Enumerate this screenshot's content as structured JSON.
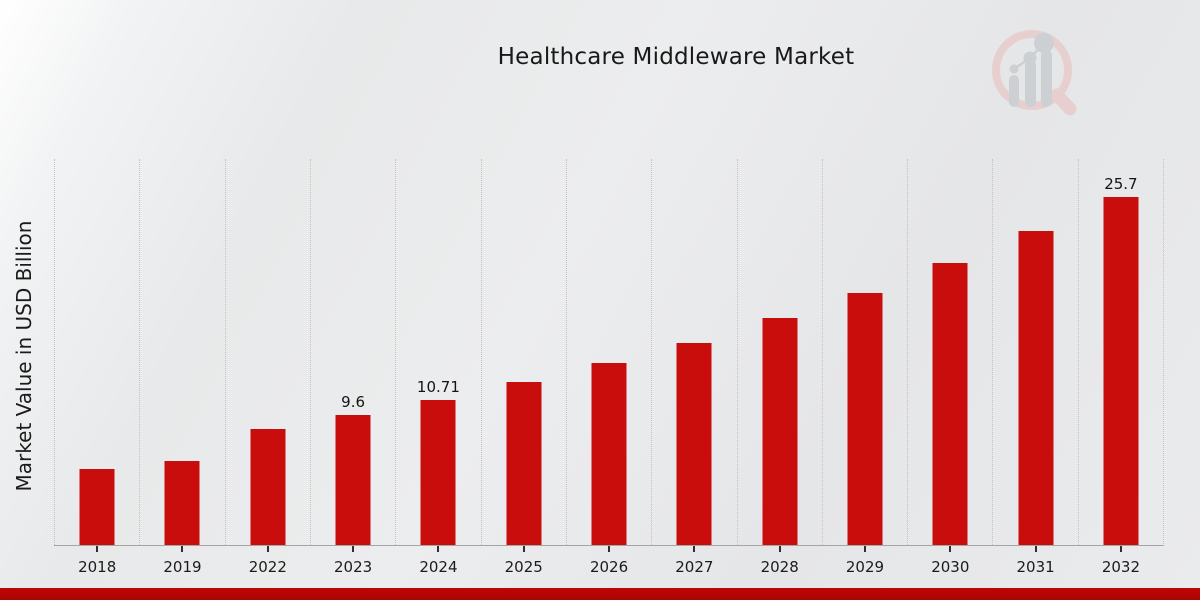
{
  "chart_data": {
    "type": "bar",
    "title": "Healthcare Middleware Market",
    "ylabel": "Market Value in USD Billion",
    "xlabel": "",
    "categories": [
      "2018",
      "2019",
      "2022",
      "2023",
      "2024",
      "2025",
      "2026",
      "2027",
      "2028",
      "2029",
      "2030",
      "2031",
      "2032"
    ],
    "values": [
      5.6,
      6.2,
      8.6,
      9.6,
      10.71,
      12.05,
      13.45,
      14.95,
      16.75,
      18.6,
      20.8,
      23.2,
      25.7
    ],
    "bar_labels": [
      "",
      "",
      "",
      "9.6",
      "10.71",
      "",
      "",
      "",
      "",
      "",
      "",
      "",
      "25.7"
    ],
    "ylim": [
      0,
      28.5
    ],
    "grid": "vertical-dotted",
    "legend": "none",
    "bar_color": "#c90d0d",
    "axis_line_color": "#a5a5a5",
    "gridline_color": "#c3c3c5",
    "text_color": "#1b1b1b"
  },
  "branding": {
    "logo": "magnifier-bar-chart-watermark",
    "logo_ring_color": "#e7cfcf",
    "logo_bars_color": "#cdd0d3",
    "accent_bar_color": "#bf0606"
  }
}
